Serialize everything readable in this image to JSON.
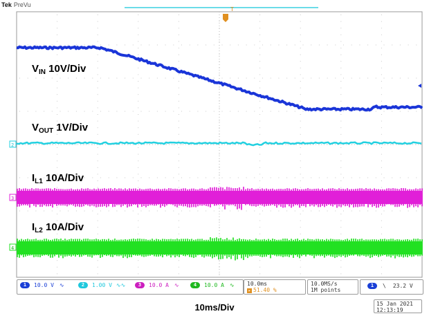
{
  "header": {
    "brand": "Tek",
    "status": "PreVu"
  },
  "labels": {
    "vin": {
      "main": "V",
      "sub": "IN",
      "rest": " 10V/Div"
    },
    "vout": {
      "main": "V",
      "sub": "OUT",
      "rest": " 1V/Div"
    },
    "il1": {
      "main": "I",
      "sub": "L1",
      "rest": " 10A/Div"
    },
    "il2": {
      "main": "I",
      "sub": "L2",
      "rest": " 10A/Div"
    }
  },
  "channel_markers": {
    "ch2": "2",
    "ch3": "3",
    "ch4": "4",
    "trigger": "T"
  },
  "readouts": {
    "ch1": {
      "num": "1",
      "value": "10.0 V",
      "coupling": "ъ",
      "color": "#1a3fd6"
    },
    "ch2": {
      "num": "2",
      "value": "1.00 V",
      "coupling": "ъъ",
      "color": "#1ec8dd"
    },
    "ch3": {
      "num": "3",
      "value": "10.0 A",
      "coupling": "ъ",
      "color": "#cc1fbf"
    },
    "ch4": {
      "num": "4",
      "value": "10.0 A",
      "coupling": "ъ",
      "color": "#1fb81f"
    }
  },
  "timebase": {
    "scale": "10.0ms",
    "position": "51.40 %"
  },
  "acquisition": {
    "rate": "10.0MS/s",
    "points": "1M points"
  },
  "trigger": {
    "source": "1",
    "slope": "\\",
    "level": "23.2 V"
  },
  "datetime": {
    "date": "15 Jan  2021",
    "time": "12:13:19"
  },
  "xaxis_label": "10ms/Div",
  "colors": {
    "ch1": "#1a35d8",
    "ch2": "#22d0e0",
    "ch3": "#e020d8",
    "ch4": "#22e022",
    "grid": "#c8c8c8",
    "trigger": "#e09020"
  }
}
